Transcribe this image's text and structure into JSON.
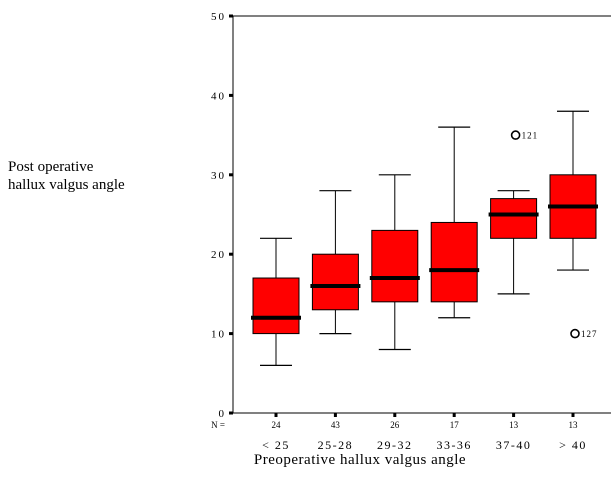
{
  "chart_data": {
    "type": "box",
    "ylabel_lines": [
      "Post operative",
      "hallux valgus angle"
    ],
    "xlabel": "Preoperative hallux valgus angle",
    "ylim": [
      0,
      50
    ],
    "yticks": [
      0,
      10,
      20,
      30,
      40,
      50
    ],
    "n_label": "N =",
    "grid": false,
    "box_color": "#ff0000",
    "categories": [
      "< 25",
      "25-28",
      "29-32",
      "33-36",
      "37-40",
      "> 40"
    ],
    "n": [
      24,
      43,
      26,
      17,
      13,
      13
    ],
    "boxes": [
      {
        "whisker_low": 6,
        "q1": 10,
        "median": 12,
        "q3": 17,
        "whisker_high": 22
      },
      {
        "whisker_low": 10,
        "q1": 13,
        "median": 16,
        "q3": 20,
        "whisker_high": 28
      },
      {
        "whisker_low": 8,
        "q1": 14,
        "median": 17,
        "q3": 23,
        "whisker_high": 30
      },
      {
        "whisker_low": 12,
        "q1": 14,
        "median": 18,
        "q3": 24,
        "whisker_high": 36
      },
      {
        "whisker_low": 15,
        "q1": 22,
        "median": 25,
        "q3": 27,
        "whisker_high": 28
      },
      {
        "whisker_low": 18,
        "q1": 22,
        "median": 26,
        "q3": 30,
        "whisker_high": 38
      }
    ],
    "outliers": [
      {
        "category_index": 4,
        "value": 35,
        "label": "121"
      },
      {
        "category_index": 5,
        "value": 10,
        "label": "127"
      }
    ]
  }
}
